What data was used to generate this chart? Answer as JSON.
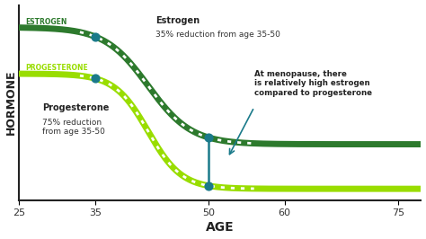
{
  "background_color": "#ffffff",
  "xlim": [
    25,
    78
  ],
  "ylim": [
    0,
    1.05
  ],
  "xticks": [
    25,
    35,
    50,
    60,
    75
  ],
  "xlabel": "AGE",
  "ylabel": "HORMONE",
  "estrogen_label": "ESTROGEN",
  "progesterone_label": "PROGESTERONE",
  "estrogen_color": "#2d7a2d",
  "progesterone_color": "#99dd00",
  "dot_color": "#1a7a8a",
  "estrogen_annotation_title": "Estrogen",
  "estrogen_annotation_body": "35% reduction from age 35-50",
  "progesterone_annotation_title": "Progesterone",
  "progesterone_annotation_body": "75% reduction\nfrom age 35-50",
  "menopause_annotation": "At menopause, there\nis relatively high estrogen\ncompared to progesterone"
}
